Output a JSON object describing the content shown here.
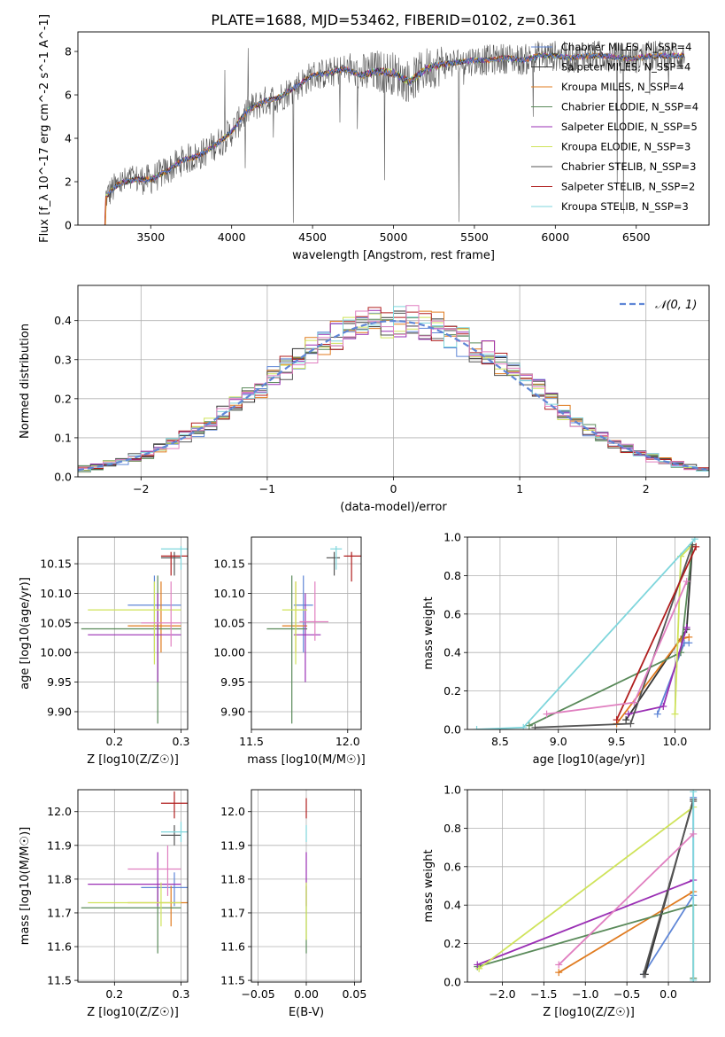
{
  "figure": {
    "title": "PLATE=1688, MJD=53462, FIBERID=0102, z=0.361"
  },
  "colors": {
    "Chabrier MILES": "#5f86d6",
    "Salpeter MILES": "#333333",
    "Kroupa MILES": "#e07b1f",
    "Chabrier ELODIE": "#5a8a5a",
    "Salpeter ELODIE": "#9a2fb4",
    "Kroupa ELODIE": "#cfe35a",
    "Chabrier STELIB": "#555555",
    "Salpeter STELIB": "#b01e1e",
    "Kroupa STELIB": "#7fd6dc",
    "pink": "#e07fc0",
    "normal": "#5f86d6"
  },
  "chart_data": [
    {
      "id": "spectrum",
      "type": "line",
      "xlabel": "wavelength [Angstrom, rest frame]",
      "ylabel": "Flux [f_λ 10^-17 erg cm^-2 s^-1 A^-1]",
      "xlim": [
        3050,
        6950
      ],
      "ylim": [
        0,
        8.9
      ],
      "xticks": [
        3500,
        4000,
        4500,
        5000,
        5500,
        6000,
        6500
      ],
      "yticks": [
        0,
        2,
        4,
        6,
        8
      ],
      "legend": [
        {
          "label": "Chabrier MILES, N_SSP=4",
          "series": "Chabrier MILES"
        },
        {
          "label": "Salpeter MILES, N_SSP=4",
          "series": "Salpeter MILES"
        },
        {
          "label": "Kroupa MILES, N_SSP=4",
          "series": "Kroupa MILES"
        },
        {
          "label": "Chabrier ELODIE, N_SSP=4",
          "series": "Chabrier ELODIE"
        },
        {
          "label": "Salpeter ELODIE, N_SSP=5",
          "series": "Salpeter ELODIE"
        },
        {
          "label": "Kroupa ELODIE, N_SSP=3",
          "series": "Kroupa ELODIE"
        },
        {
          "label": "Chabrier STELIB, N_SSP=3",
          "series": "Chabrier STELIB"
        },
        {
          "label": "Salpeter STELIB, N_SSP=2",
          "series": "Salpeter STELIB"
        },
        {
          "label": "Kroupa STELIB, N_SSP=3",
          "series": "Kroupa STELIB"
        }
      ],
      "legend_loc": "upper right",
      "envelope": {
        "x": [
          3220,
          3300,
          3400,
          3500,
          3600,
          3700,
          3800,
          3900,
          4000,
          4100,
          4200,
          4300,
          4400,
          4500,
          4600,
          4700,
          4800,
          4900,
          5000,
          5100,
          5200,
          5300,
          5400,
          5500,
          5600,
          5700,
          5800,
          5900,
          6000,
          6100,
          6200,
          6300,
          6400,
          6500,
          6600,
          6700,
          6800
        ],
        "y": [
          1.3,
          1.9,
          2.1,
          2.1,
          2.5,
          3.0,
          3.2,
          3.7,
          4.3,
          5.3,
          5.7,
          5.9,
          6.4,
          6.9,
          7.0,
          7.2,
          6.9,
          7.1,
          7.0,
          6.6,
          7.2,
          7.4,
          7.5,
          7.6,
          7.6,
          7.7,
          7.6,
          7.8,
          7.8,
          7.7,
          7.8,
          7.8,
          7.7,
          7.7,
          7.8,
          7.8,
          7.8
        ]
      }
    },
    {
      "id": "residuals",
      "type": "histogram",
      "xlabel": "(data-model)/error",
      "ylabel": "Normed distribution",
      "xlim": [
        -2.5,
        2.5
      ],
      "ylim": [
        0,
        0.49
      ],
      "xticks": [
        -2,
        -1,
        0,
        1,
        2
      ],
      "yticks": [
        0.0,
        0.1,
        0.2,
        0.3,
        0.4
      ],
      "legend": [
        {
          "label": "𝒩(0, 1)",
          "series": "normal"
        }
      ],
      "legend_loc": "upper right",
      "bin_width": 0.1,
      "series": "normal distribution N(0,1) plus 9 step histograms of residuals following it"
    },
    {
      "id": "age_vs_Z",
      "type": "errorbar",
      "xlabel": "Z [log10(Z/Z☉)]",
      "ylabel": "age  [log10(age/yr)]",
      "xlim": [
        0.145,
        0.31
      ],
      "ylim": [
        9.87,
        10.195
      ],
      "xticks": [
        0.2,
        0.3
      ],
      "yticks": [
        9.9,
        9.95,
        10.0,
        10.05,
        10.1,
        10.15
      ],
      "points": [
        {
          "series": "Chabrier MILES",
          "x": 0.26,
          "xerr": [
            0.22,
            0.3
          ],
          "y": 10.08,
          "yerr": [
            10.0,
            10.13
          ]
        },
        {
          "series": "Kroupa MILES",
          "x": 0.27,
          "xerr": [
            0.22,
            0.3
          ],
          "y": 10.045,
          "yerr": [
            10.0,
            10.12
          ]
        },
        {
          "series": "Chabrier ELODIE",
          "x": 0.265,
          "xerr": [
            0.15,
            0.3
          ],
          "y": 10.04,
          "yerr": [
            9.88,
            10.13
          ]
        },
        {
          "series": "Salpeter ELODIE",
          "x": 0.265,
          "xerr": [
            0.16,
            0.3
          ],
          "y": 10.03,
          "yerr": [
            9.95,
            10.1
          ]
        },
        {
          "series": "Kroupa ELODIE",
          "x": 0.26,
          "xerr": [
            0.16,
            0.3
          ],
          "y": 10.072,
          "yerr": [
            9.98,
            10.12
          ]
        },
        {
          "series": "Chabrier STELIB",
          "x": 0.29,
          "xerr": [
            0.27,
            0.3
          ],
          "y": 10.16,
          "yerr": [
            10.13,
            10.17
          ]
        },
        {
          "series": "Salpeter STELIB",
          "x": 0.285,
          "xerr": [
            0.27,
            0.31
          ],
          "y": 10.163,
          "yerr": [
            10.13,
            10.17
          ]
        },
        {
          "series": "Kroupa STELIB",
          "x": 0.3,
          "xerr": [
            0.27,
            0.31
          ],
          "y": 10.175,
          "yerr": [
            10.14,
            10.18
          ]
        },
        {
          "series": "pink",
          "x": 0.285,
          "xerr": [
            0.24,
            0.3
          ],
          "y": 10.05,
          "yerr": [
            10.01,
            10.12
          ]
        }
      ]
    },
    {
      "id": "age_vs_mass",
      "type": "errorbar",
      "xlabel": "mass [log10(M/M☉)]",
      "ylabel": "",
      "xlim": [
        11.5,
        12.07
      ],
      "ylim": [
        9.87,
        10.195
      ],
      "xticks": [
        11.5,
        12.0
      ],
      "yticks": [
        9.9,
        9.95,
        10.0,
        10.05,
        10.1,
        10.15
      ],
      "points": [
        {
          "series": "Chabrier MILES",
          "x": 11.77,
          "xerr": [
            11.72,
            11.82
          ],
          "y": 10.08,
          "yerr": [
            10.0,
            10.13
          ]
        },
        {
          "series": "Kroupa MILES",
          "x": 11.73,
          "xerr": [
            11.66,
            11.79
          ],
          "y": 10.045,
          "yerr": [
            10.0,
            10.12
          ]
        },
        {
          "series": "Chabrier ELODIE",
          "x": 11.71,
          "xerr": [
            11.58,
            11.79
          ],
          "y": 10.04,
          "yerr": [
            9.88,
            10.13
          ]
        },
        {
          "series": "Salpeter ELODIE",
          "x": 11.78,
          "xerr": [
            11.72,
            11.86
          ],
          "y": 10.03,
          "yerr": [
            9.95,
            10.1
          ]
        },
        {
          "series": "Kroupa ELODIE",
          "x": 11.73,
          "xerr": [
            11.66,
            11.79
          ],
          "y": 10.072,
          "yerr": [
            9.98,
            10.12
          ]
        },
        {
          "series": "Chabrier STELIB",
          "x": 11.93,
          "xerr": [
            11.89,
            11.96
          ],
          "y": 10.16,
          "yerr": [
            10.13,
            10.17
          ]
        },
        {
          "series": "Salpeter STELIB",
          "x": 12.02,
          "xerr": [
            11.98,
            12.07
          ],
          "y": 10.163,
          "yerr": [
            10.12,
            10.17
          ]
        },
        {
          "series": "Kroupa STELIB",
          "x": 11.94,
          "xerr": [
            11.91,
            11.97
          ],
          "y": 10.175,
          "yerr": [
            10.14,
            10.18
          ]
        },
        {
          "series": "pink",
          "x": 11.83,
          "xerr": [
            11.75,
            11.9
          ],
          "y": 10.052,
          "yerr": [
            10.02,
            10.12
          ]
        }
      ]
    },
    {
      "id": "weight_vs_age",
      "type": "line",
      "xlabel": "age  [log10(age/yr)]",
      "ylabel": "mass weight",
      "xlim": [
        8.22,
        10.3
      ],
      "ylim": [
        0,
        1.0
      ],
      "xticks": [
        8.5,
        9.0,
        9.5,
        10.0
      ],
      "yticks": [
        0.0,
        0.2,
        0.4,
        0.6,
        0.8,
        1.0
      ],
      "series": [
        {
          "series": "Chabrier MILES",
          "x": [
            9.85,
            10.08,
            10.12
          ],
          "y": [
            0.08,
            0.45,
            0.45
          ]
        },
        {
          "series": "Salpeter MILES",
          "x": [
            9.58,
            10.1,
            10.15
          ],
          "y": [
            0.05,
            0.52,
            0.95
          ]
        },
        {
          "series": "Kroupa MILES",
          "x": [
            9.5,
            10.05,
            10.12
          ],
          "y": [
            0.03,
            0.47,
            0.48
          ]
        },
        {
          "series": "Chabrier ELODIE",
          "x": [
            8.75,
            10.05,
            10.15
          ],
          "y": [
            0.02,
            0.4,
            0.96
          ]
        },
        {
          "series": "Salpeter ELODIE",
          "x": [
            9.6,
            9.9,
            10.1
          ],
          "y": [
            0.08,
            0.12,
            0.53
          ]
        },
        {
          "series": "Kroupa ELODIE",
          "x": [
            10.0,
            10.05,
            10.15
          ],
          "y": [
            0.08,
            0.9,
            0.96
          ]
        },
        {
          "series": "Chabrier STELIB",
          "x": [
            8.8,
            9.62,
            10.15
          ],
          "y": [
            0.01,
            0.03,
            0.96
          ]
        },
        {
          "series": "Salpeter STELIB",
          "x": [
            9.5,
            10.18
          ],
          "y": [
            0.05,
            0.95
          ]
        },
        {
          "series": "Kroupa STELIB",
          "x": [
            8.3,
            8.7,
            10.17
          ],
          "y": [
            0.0,
            0.01,
            0.99
          ]
        },
        {
          "series": "pink",
          "x": [
            8.9,
            9.65,
            10.1
          ],
          "y": [
            0.08,
            0.14,
            0.77
          ]
        }
      ]
    },
    {
      "id": "mass_vs_Z",
      "type": "errorbar",
      "xlabel": "Z [log10(Z/Z☉)]",
      "ylabel": "mass [log10(M/M☉)]",
      "xlim": [
        0.145,
        0.31
      ],
      "ylim": [
        11.495,
        12.065
      ],
      "xticks": [
        0.2,
        0.3
      ],
      "yticks": [
        11.5,
        11.6,
        11.7,
        11.8,
        11.9,
        12.0
      ],
      "points": [
        {
          "series": "Chabrier MILES",
          "x": 0.29,
          "xerr": [
            0.24,
            0.31
          ],
          "y": 11.775,
          "yerr": [
            11.72,
            11.82
          ]
        },
        {
          "series": "Kroupa MILES",
          "x": 0.285,
          "xerr": [
            0.22,
            0.31
          ],
          "y": 11.73,
          "yerr": [
            11.66,
            11.78
          ]
        },
        {
          "series": "Chabrier ELODIE",
          "x": 0.265,
          "xerr": [
            0.15,
            0.3
          ],
          "y": 11.715,
          "yerr": [
            11.58,
            11.78
          ]
        },
        {
          "series": "Salpeter ELODIE",
          "x": 0.265,
          "xerr": [
            0.16,
            0.3
          ],
          "y": 11.785,
          "yerr": [
            11.72,
            11.88
          ]
        },
        {
          "series": "Kroupa ELODIE",
          "x": 0.27,
          "xerr": [
            0.16,
            0.3
          ],
          "y": 11.73,
          "yerr": [
            11.66,
            11.79
          ]
        },
        {
          "series": "Chabrier STELIB",
          "x": 0.29,
          "xerr": [
            0.27,
            0.3
          ],
          "y": 11.93,
          "yerr": [
            11.9,
            11.96
          ]
        },
        {
          "series": "Salpeter STELIB",
          "x": 0.29,
          "xerr": [
            0.27,
            0.31
          ],
          "y": 12.025,
          "yerr": [
            11.98,
            12.06
          ]
        },
        {
          "series": "Kroupa STELIB",
          "x": 0.3,
          "xerr": [
            0.27,
            0.31
          ],
          "y": 11.94,
          "yerr": [
            11.91,
            11.97
          ]
        },
        {
          "series": "pink",
          "x": 0.28,
          "xerr": [
            0.22,
            0.3
          ],
          "y": 11.83,
          "yerr": [
            11.75,
            11.9
          ]
        }
      ]
    },
    {
      "id": "mass_vs_ebv",
      "type": "errorbar",
      "xlabel": "E(B-V)",
      "ylabel": "",
      "xlim": [
        -0.057,
        0.057
      ],
      "ylim": [
        11.495,
        12.065
      ],
      "xticks": [
        -0.05,
        0.0,
        0.05
      ],
      "yticks": [
        11.5,
        11.6,
        11.7,
        11.8,
        11.9,
        12.0
      ],
      "points": [
        {
          "series": "Chabrier ELODIE",
          "x": 0.0,
          "y": 11.715,
          "yerr": [
            11.58,
            11.78
          ]
        },
        {
          "series": "Salpeter ELODIE",
          "x": 0.0,
          "y": 11.785,
          "yerr": [
            11.72,
            11.88
          ]
        },
        {
          "series": "Kroupa ELODIE",
          "x": 0.0,
          "y": 11.73,
          "yerr": [
            11.62,
            11.79
          ]
        },
        {
          "series": "Salpeter STELIB",
          "x": 0.0,
          "y": 12.02,
          "yerr": [
            11.98,
            12.04
          ]
        },
        {
          "series": "Kroupa STELIB",
          "x": 0.0,
          "y": 11.94,
          "yerr": [
            11.91,
            11.96
          ]
        }
      ]
    },
    {
      "id": "weight_vs_Z",
      "type": "line",
      "xlabel": "Z [log10(Z/Z☉)]",
      "ylabel": "mass weight",
      "xlim": [
        -2.42,
        0.5
      ],
      "ylim": [
        0,
        1.0
      ],
      "xticks": [
        -2.0,
        -1.5,
        -1.0,
        -0.5,
        0.0
      ],
      "yticks": [
        0.0,
        0.2,
        0.4,
        0.6,
        0.8,
        1.0
      ],
      "series": [
        {
          "series": "Chabrier MILES",
          "x": [
            -0.3,
            0.3,
            0.3
          ],
          "y": [
            0.04,
            0.45,
            0.96
          ]
        },
        {
          "series": "Salpeter MILES",
          "x": [
            -0.28,
            0.3
          ],
          "y": [
            0.04,
            0.95
          ]
        },
        {
          "series": "Kroupa MILES",
          "x": [
            -1.32,
            0.3
          ],
          "y": [
            0.05,
            0.47
          ]
        },
        {
          "series": "Chabrier ELODIE",
          "x": [
            -2.3,
            0.3,
            0.3
          ],
          "y": [
            0.08,
            0.4,
            0.02
          ]
        },
        {
          "series": "Salpeter ELODIE",
          "x": [
            -2.3,
            0.3
          ],
          "y": [
            0.09,
            0.53
          ]
        },
        {
          "series": "Kroupa ELODIE",
          "x": [
            -2.28,
            0.3
          ],
          "y": [
            0.07,
            0.91
          ]
        },
        {
          "series": "Chabrier STELIB",
          "x": [
            -0.3,
            0.3
          ],
          "y": [
            0.04,
            0.94
          ]
        },
        {
          "series": "Kroupa STELIB",
          "x": [
            0.3,
            0.3
          ],
          "y": [
            0.01,
            0.99
          ]
        },
        {
          "series": "pink",
          "x": [
            -1.32,
            0.3
          ],
          "y": [
            0.09,
            0.77
          ]
        }
      ]
    }
  ]
}
